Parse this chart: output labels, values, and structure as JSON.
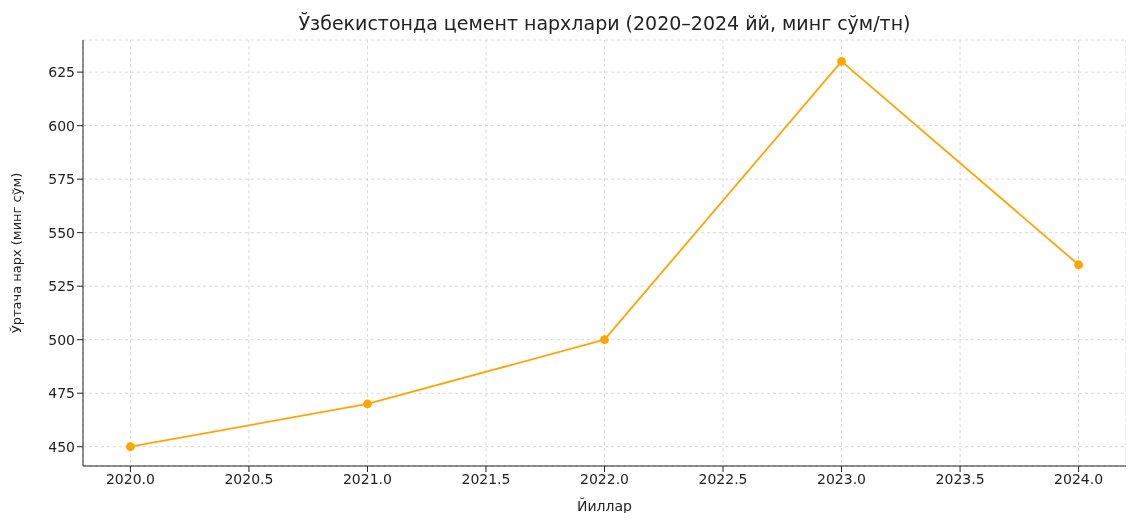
{
  "chart_data": {
    "type": "line",
    "title": "Ўзбекистонда цемент нархлари (2020–2024 йй, минг сўм/тн)",
    "xlabel": "Йиллар",
    "ylabel": "Ўртача нарх (минг сўм)",
    "x": [
      2020,
      2021,
      2022,
      2023,
      2024
    ],
    "series": [
      {
        "color": "#ffa500",
        "values": [
          450,
          470,
          500,
          630,
          535
        ]
      }
    ],
    "xlim": [
      2019.8,
      2024.2
    ],
    "ylim": [
      441,
      640
    ],
    "xticks": [
      {
        "value": 2020,
        "label": "2020.0"
      },
      {
        "value": 2020.5,
        "label": "2020.5"
      },
      {
        "value": 2021,
        "label": "2021.0"
      },
      {
        "value": 2021.5,
        "label": "2021.5"
      },
      {
        "value": 2022,
        "label": "2022.0"
      },
      {
        "value": 2022.5,
        "label": "2022.5"
      },
      {
        "value": 2023,
        "label": "2023.0"
      },
      {
        "value": 2023.5,
        "label": "2023.5"
      },
      {
        "value": 2024,
        "label": "2024.0"
      }
    ],
    "yticks": [
      450,
      475,
      500,
      525,
      550,
      575,
      600,
      625
    ],
    "grid": true,
    "marker": "circle",
    "line_style": "solid",
    "legend": false
  }
}
